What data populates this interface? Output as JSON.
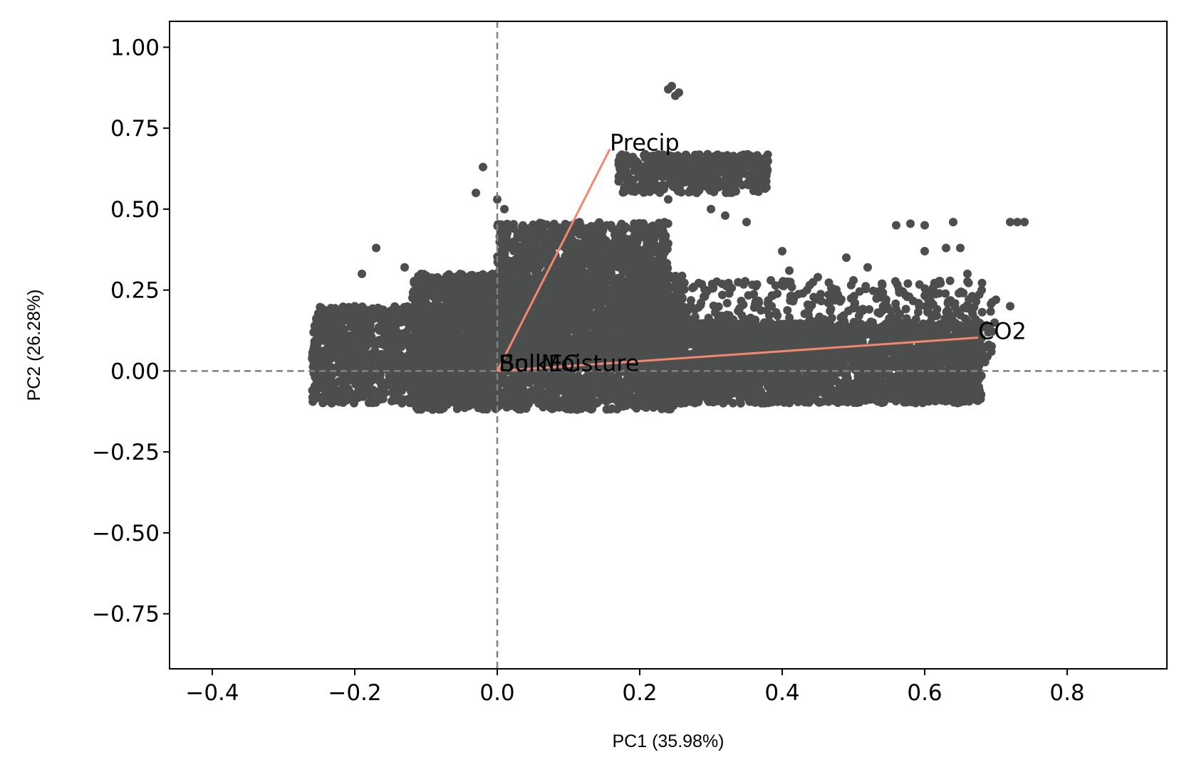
{
  "chart_data": {
    "type": "scatter",
    "title": "",
    "xlabel": "PC1 (35.98%)",
    "ylabel": "PC2 (26.28%)",
    "xlim": [
      -0.46,
      0.94
    ],
    "ylim": [
      -0.92,
      1.08
    ],
    "x_ticks": [
      -0.4,
      -0.2,
      0.0,
      0.2,
      0.4,
      0.6,
      0.8
    ],
    "x_tick_labels": [
      "−0.4",
      "−0.2",
      "0.0",
      "0.2",
      "0.4",
      "0.6",
      "0.8"
    ],
    "y_ticks": [
      1.0,
      0.75,
      0.5,
      0.25,
      0.0,
      -0.25,
      -0.5,
      -0.75
    ],
    "y_tick_labels": [
      "1.00",
      "0.75",
      "0.50",
      "0.25",
      "0.00",
      "−0.25",
      "−0.50",
      "−0.75"
    ],
    "grid": false,
    "reference_lines": {
      "x": 0,
      "y": 0,
      "style": "dashed",
      "color": "#808080"
    },
    "point_color": "#4b4e4d",
    "vector_color": "#f4876f",
    "loadings": [
      {
        "name": "Precip",
        "x": 0.158,
        "y": 0.685
      },
      {
        "name": "CO2",
        "x": 0.675,
        "y": 0.103
      },
      {
        "name": "SoilMoisture",
        "x": 0.004,
        "y": 0.004
      },
      {
        "name": "BulkEC",
        "x": 0.002,
        "y": 0.003
      }
    ],
    "score_clusters": [
      {
        "x": [
          -0.26,
          0.0
        ],
        "y": [
          -0.1,
          0.2
        ],
        "n": 1400
      },
      {
        "x": [
          -0.12,
          0.26
        ],
        "y": [
          -0.12,
          0.3
        ],
        "n": 2600
      },
      {
        "x": [
          0.0,
          0.24
        ],
        "y": [
          0.0,
          0.46
        ],
        "n": 1700
      },
      {
        "x": [
          0.2,
          0.68
        ],
        "y": [
          -0.1,
          0.15
        ],
        "n": 2600
      },
      {
        "x": [
          0.25,
          0.7
        ],
        "y": [
          0.02,
          0.28
        ],
        "n": 600
      },
      {
        "x": [
          0.17,
          0.38
        ],
        "y": [
          0.55,
          0.67
        ],
        "n": 450
      }
    ],
    "score_points": [
      [
        0.245,
        0.88
      ],
      [
        0.25,
        0.85
      ],
      [
        0.255,
        0.86
      ],
      [
        0.24,
        0.87
      ],
      [
        -0.02,
        0.63
      ],
      [
        0.0,
        0.53
      ],
      [
        0.01,
        0.5
      ],
      [
        -0.03,
        0.55
      ],
      [
        0.56,
        0.45
      ],
      [
        0.6,
        0.45
      ],
      [
        0.64,
        0.46
      ],
      [
        0.58,
        0.455
      ],
      [
        0.72,
        0.46
      ],
      [
        0.73,
        0.46
      ],
      [
        0.74,
        0.46
      ],
      [
        0.63,
        0.38
      ],
      [
        0.65,
        0.38
      ],
      [
        0.6,
        0.37
      ],
      [
        0.66,
        0.3
      ],
      [
        0.7,
        0.22
      ],
      [
        0.72,
        0.2
      ],
      [
        0.68,
        0.25
      ],
      [
        -0.17,
        0.38
      ],
      [
        -0.19,
        0.3
      ],
      [
        -0.13,
        0.32
      ],
      [
        0.45,
        0.29
      ],
      [
        0.5,
        0.28
      ],
      [
        0.54,
        0.27
      ],
      [
        0.41,
        0.31
      ],
      [
        0.35,
        0.46
      ],
      [
        0.32,
        0.48
      ],
      [
        0.3,
        0.5
      ],
      [
        0.28,
        0.55
      ],
      [
        0.36,
        0.62
      ],
      [
        0.24,
        0.53
      ],
      [
        -0.2,
        0.2
      ],
      [
        -0.21,
        0.18
      ],
      [
        -0.22,
        0.17
      ],
      [
        0.54,
        0.0
      ],
      [
        0.58,
        -0.02
      ],
      [
        0.62,
        0.0
      ],
      [
        0.66,
        0.02
      ],
      [
        0.49,
        0.35
      ],
      [
        0.4,
        0.37
      ],
      [
        0.52,
        0.32
      ]
    ]
  }
}
